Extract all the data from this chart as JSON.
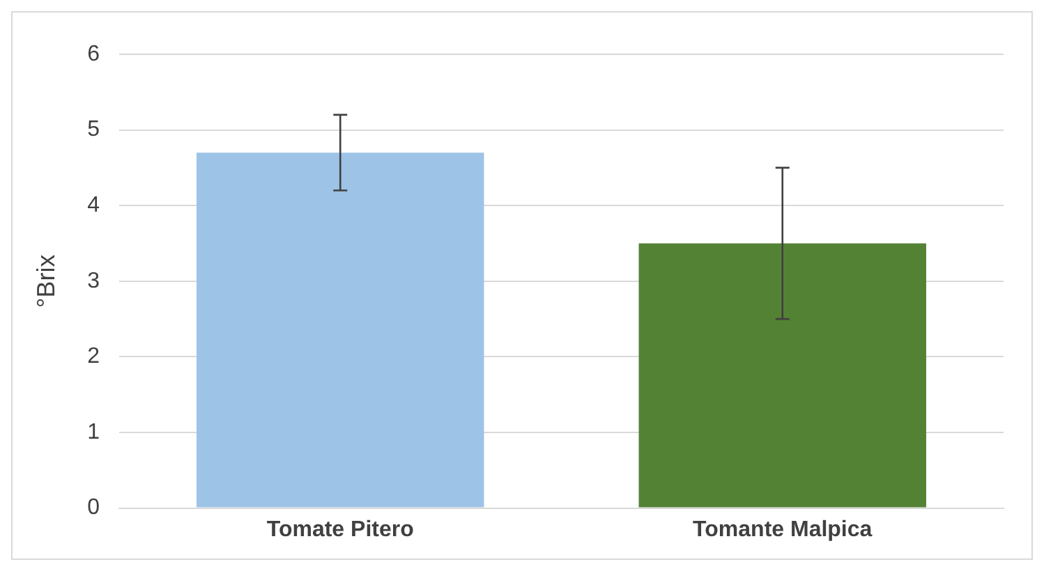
{
  "chart_data": {
    "type": "bar",
    "ylabel": "°Brix",
    "categories": [
      "Tomate Pitero",
      "Tomante Malpica"
    ],
    "values": [
      4.7,
      3.5
    ],
    "colors": [
      "#9dc3e6",
      "#548235"
    ],
    "errors": [
      0.5,
      1.0
    ],
    "ylim": [
      0,
      6
    ],
    "yticks": [
      0,
      1,
      2,
      3,
      4,
      5,
      6
    ],
    "grid": "y",
    "legend": false
  }
}
